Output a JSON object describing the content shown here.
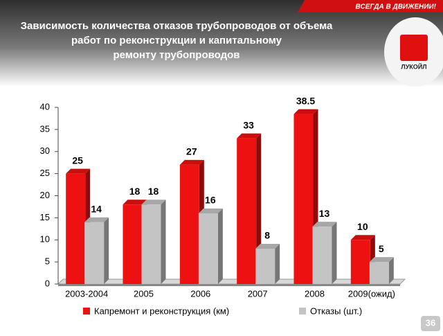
{
  "slide": {
    "slogan": "ВСЕГДА В ДВИЖЕНИИ!",
    "logo": "ЛУКОЙЛ",
    "page_number": 36
  },
  "chart_data": {
    "type": "bar3d",
    "title": "Зависимость количества отказов трубопроводов от объема работ по реконструкции и капитальному ремонту трубопроводов",
    "categories": [
      "2003-2004",
      "2005",
      "2006",
      "2007",
      "2008",
      "2009(ожид)"
    ],
    "series": [
      {
        "name": "Капремонт и реконструкция (км)",
        "color": "#ee1111",
        "values": [
          25,
          18,
          27,
          33,
          38.5,
          10
        ]
      },
      {
        "name": "Отказы (шт.)",
        "color": "#c4c4c4",
        "values": [
          14,
          18,
          16,
          8,
          13,
          5
        ]
      }
    ],
    "ylim": [
      0,
      40
    ],
    "yticks": [
      0,
      5,
      10,
      15,
      20,
      25,
      30,
      35,
      40
    ],
    "grid": false,
    "legend": "bottom"
  }
}
